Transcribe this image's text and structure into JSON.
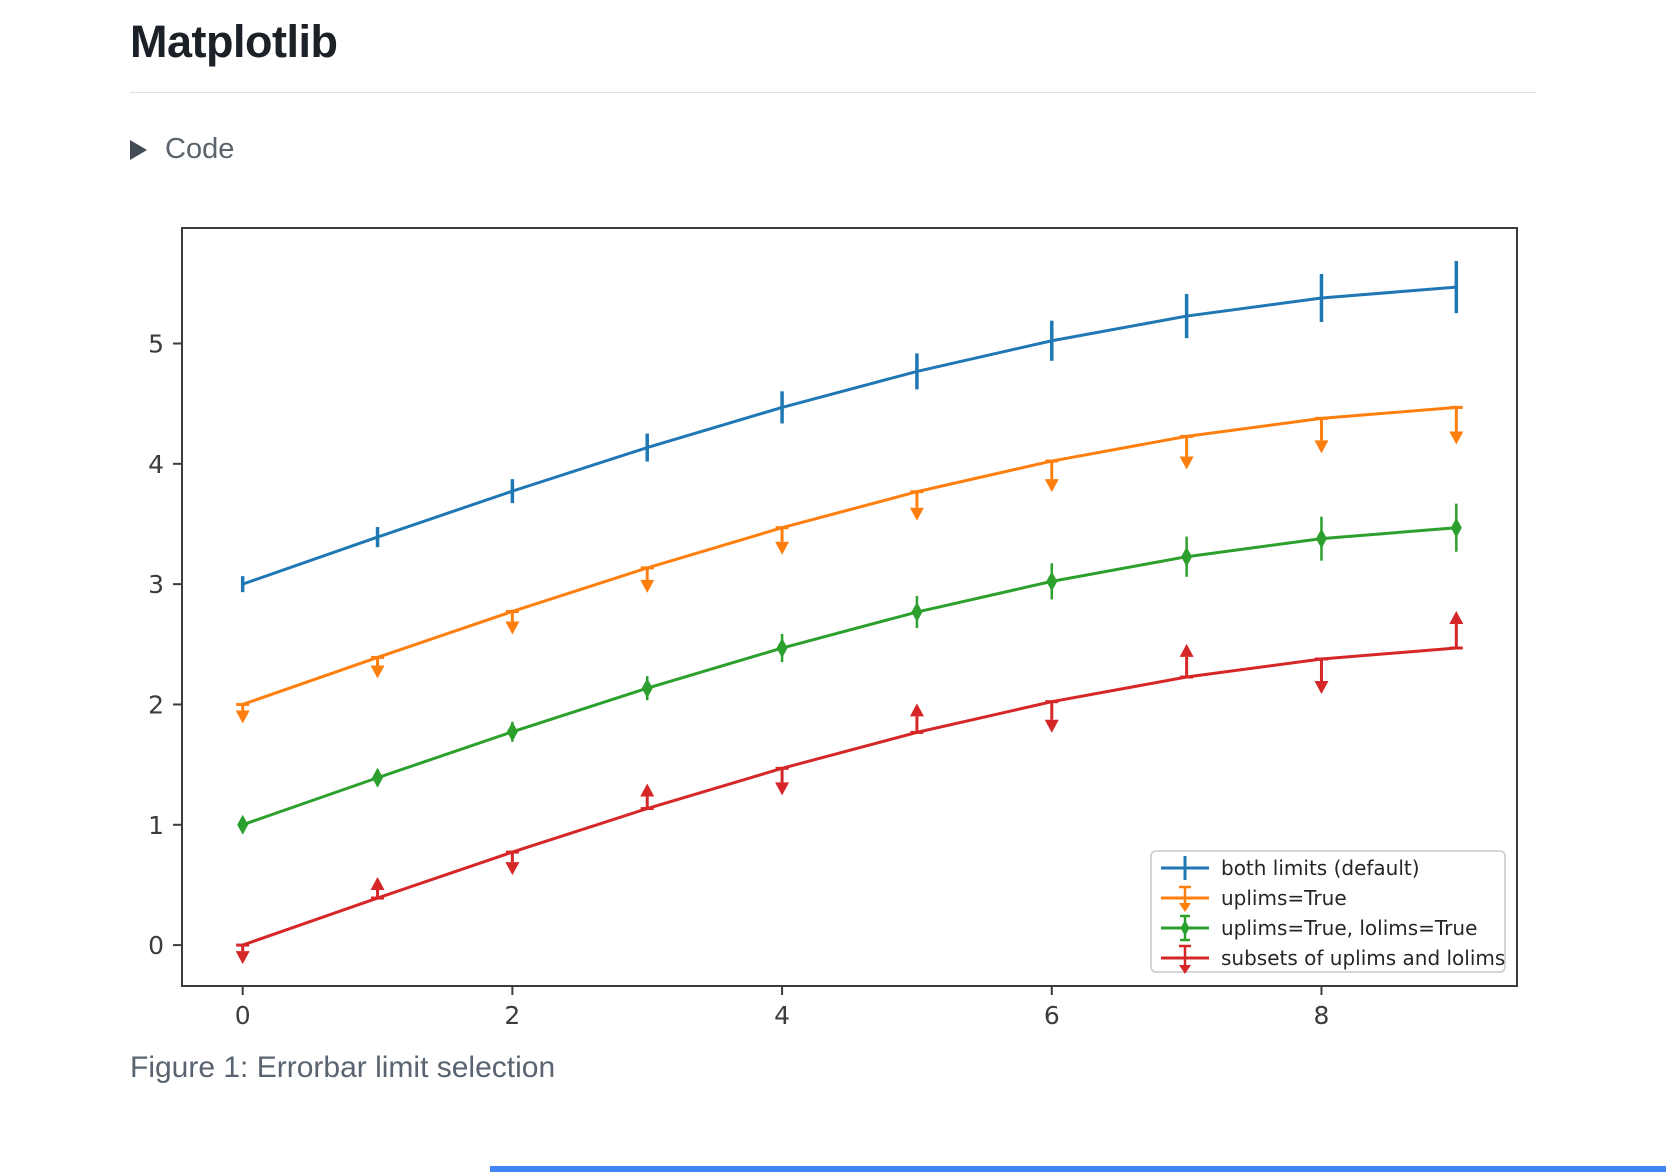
{
  "page": {
    "title": "Matplotlib",
    "code_toggle": {
      "label": "Code"
    },
    "caption": "Figure 1: Errorbar limit selection",
    "decor": {
      "bottom_bar_color": "#4285f4"
    }
  },
  "chart_data": {
    "type": "line",
    "subtype": "errorbar-limits",
    "x": [
      0,
      1,
      2,
      3,
      4,
      5,
      6,
      7,
      8,
      9
    ],
    "yerr": [
      0.05,
      0.067,
      0.083,
      0.1,
      0.117,
      0.133,
      0.15,
      0.167,
      0.183,
      0.2
    ],
    "series": [
      {
        "name": "both limits (default)",
        "color": "#1f77b4",
        "limits": "none",
        "values": [
          3.0,
          3.391,
          3.773,
          4.135,
          4.469,
          4.768,
          5.023,
          5.228,
          5.378,
          5.469
        ]
      },
      {
        "name": "uplims=True",
        "color": "#ff7f0e",
        "limits": "uplims",
        "values": [
          2.0,
          2.391,
          2.773,
          3.135,
          3.469,
          3.768,
          4.023,
          4.228,
          4.378,
          4.469
        ]
      },
      {
        "name": "uplims=True, lolims=True",
        "color": "#2ca02c",
        "limits": "both",
        "values": [
          1.0,
          1.391,
          1.773,
          2.135,
          2.469,
          2.768,
          3.023,
          3.228,
          3.378,
          3.469
        ]
      },
      {
        "name": "subsets of uplims and lolims",
        "color": "#d62728",
        "limits": "mixed",
        "uplims": [
          true,
          false,
          true,
          false,
          true,
          false,
          true,
          false,
          true,
          false
        ],
        "lolims": [
          false,
          true,
          false,
          true,
          false,
          true,
          false,
          true,
          false,
          true
        ],
        "values": [
          0.0,
          0.391,
          0.773,
          1.135,
          1.469,
          1.768,
          2.023,
          2.228,
          2.378,
          2.469
        ]
      }
    ],
    "xticks": [
      0,
      2,
      4,
      6,
      8
    ],
    "yticks": [
      0,
      1,
      2,
      3,
      4,
      5
    ],
    "xlim": [
      -0.45,
      9.45
    ],
    "ylim": [
      -0.34,
      5.96
    ],
    "grid": false,
    "legend": {
      "position": "lower right"
    },
    "title": "",
    "xlabel": "",
    "ylabel": ""
  }
}
